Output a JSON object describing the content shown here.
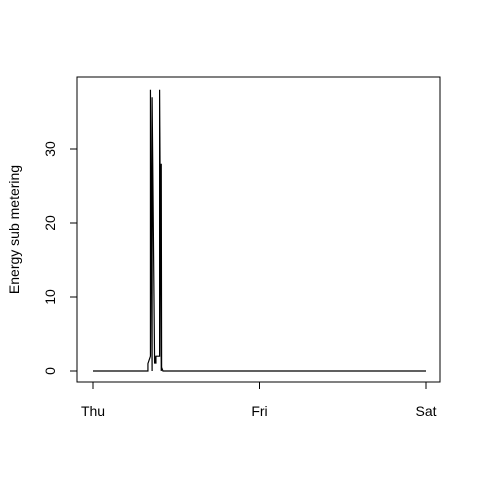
{
  "chart_data": {
    "type": "line",
    "title": "",
    "xlabel": "",
    "ylabel": "Energy sub metering",
    "x_tick_labels": [
      "Thu",
      "Fri",
      "Sat"
    ],
    "y_tick_labels": [
      "0",
      "10",
      "20",
      "30"
    ],
    "y_ticks": [
      0,
      10,
      20,
      30
    ],
    "xlim_days": [
      0,
      2
    ],
    "ylim": [
      0,
      38
    ],
    "grid": false,
    "legend": "none",
    "line_color": "#000000",
    "series": [
      {
        "x_days": [
          0,
          0.33,
          0.33,
          0.345,
          0.345,
          0.355,
          0.355,
          0.37,
          0.37,
          0.378,
          0.378,
          0.4,
          0.4,
          0.41,
          0.41,
          0.412,
          0.412,
          0.42,
          0.42,
          2
        ],
        "values": [
          0,
          0,
          1,
          2,
          38,
          0,
          37,
          1,
          2,
          1,
          2,
          2,
          38,
          0,
          28,
          1,
          0.5,
          0,
          0,
          0
        ]
      }
    ]
  }
}
